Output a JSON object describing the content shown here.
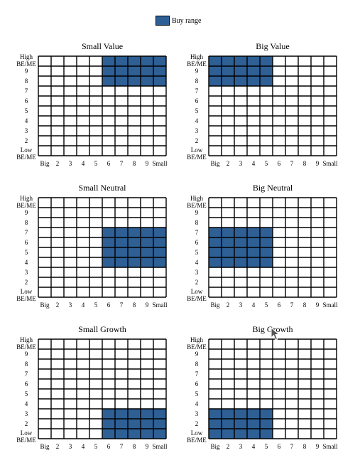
{
  "legend": {
    "label": "Buy range",
    "color": "#2e5f95"
  },
  "grid_color": "#000000",
  "chart_data": [
    {
      "type": "heatmap",
      "title": "Small Value",
      "x_labels": [
        "Big",
        "2",
        "3",
        "4",
        "5",
        "6",
        "7",
        "8",
        "9",
        "Small"
      ],
      "y_labels": [
        "High BE/ME",
        "9",
        "8",
        "7",
        "6",
        "5",
        "4",
        "3",
        "2",
        "Low BE/ME"
      ],
      "buy_range": {
        "size_quintiles": [
          6,
          10
        ],
        "beme_deciles": [
          8,
          10
        ]
      }
    },
    {
      "type": "heatmap",
      "title": "Big Value",
      "x_labels": [
        "Big",
        "2",
        "3",
        "4",
        "5",
        "6",
        "7",
        "8",
        "9",
        "Small"
      ],
      "y_labels": [
        "High BE/ME",
        "9",
        "8",
        "7",
        "6",
        "5",
        "4",
        "3",
        "2",
        "Low BE/ME"
      ],
      "buy_range": {
        "size_quintiles": [
          1,
          5
        ],
        "beme_deciles": [
          8,
          10
        ]
      }
    },
    {
      "type": "heatmap",
      "title": "Small Neutral",
      "x_labels": [
        "Big",
        "2",
        "3",
        "4",
        "5",
        "6",
        "7",
        "8",
        "9",
        "Small"
      ],
      "y_labels": [
        "High BE/ME",
        "9",
        "8",
        "7",
        "6",
        "5",
        "4",
        "3",
        "2",
        "Low BE/ME"
      ],
      "buy_range": {
        "size_quintiles": [
          6,
          10
        ],
        "beme_deciles": [
          4,
          7
        ]
      }
    },
    {
      "type": "heatmap",
      "title": "Big Neutral",
      "x_labels": [
        "Big",
        "2",
        "3",
        "4",
        "5",
        "6",
        "7",
        "8",
        "9",
        "Small"
      ],
      "y_labels": [
        "High BE/ME",
        "9",
        "8",
        "7",
        "6",
        "5",
        "4",
        "3",
        "2",
        "Low BE/ME"
      ],
      "buy_range": {
        "size_quintiles": [
          1,
          5
        ],
        "beme_deciles": [
          4,
          7
        ]
      }
    },
    {
      "type": "heatmap",
      "title": "Small Growth",
      "x_labels": [
        "Big",
        "2",
        "3",
        "4",
        "5",
        "6",
        "7",
        "8",
        "9",
        "Small"
      ],
      "y_labels": [
        "High BE/ME",
        "9",
        "8",
        "7",
        "6",
        "5",
        "4",
        "3",
        "2",
        "Low BE/ME"
      ],
      "buy_range": {
        "size_quintiles": [
          6,
          10
        ],
        "beme_deciles": [
          1,
          3
        ]
      }
    },
    {
      "type": "heatmap",
      "title": "Big Growth",
      "x_labels": [
        "Big",
        "2",
        "3",
        "4",
        "5",
        "6",
        "7",
        "8",
        "9",
        "Small"
      ],
      "y_labels": [
        "High BE/ME",
        "9",
        "8",
        "7",
        "6",
        "5",
        "4",
        "3",
        "2",
        "Low BE/ME"
      ],
      "buy_range": {
        "size_quintiles": [
          1,
          5
        ],
        "beme_deciles": [
          1,
          3
        ]
      }
    }
  ]
}
